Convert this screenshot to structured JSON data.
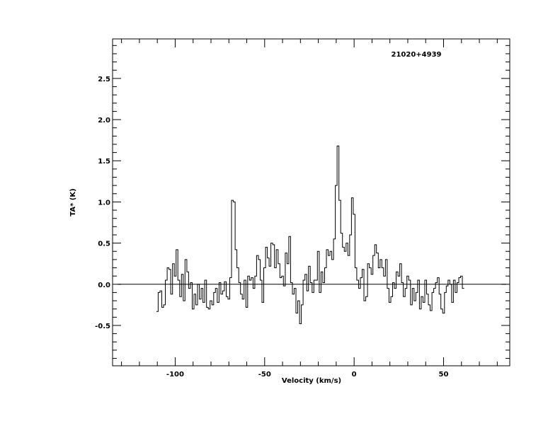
{
  "chart_data": {
    "type": "line",
    "title": "21020+4939",
    "xlabel": "Velocity (km/s)",
    "ylabel": "TA* (K)",
    "xlim": [
      -135,
      87
    ],
    "ylim": [
      -0.99,
      2.98
    ],
    "x_ticks": [
      -100,
      -50,
      0,
      50
    ],
    "x_tick_labels": [
      "-100",
      "-50",
      "0",
      "50"
    ],
    "y_ticks": [
      -0.5,
      0.0,
      0.5,
      1.0,
      1.5,
      2.0,
      2.5
    ],
    "y_tick_labels": [
      "-0.5",
      "0.0",
      "0.5",
      "1.0",
      "1.5",
      "2.0",
      "2.5"
    ],
    "baseline": {
      "y": 0.0,
      "x_range": [
        -132,
        85
      ]
    },
    "grid": false,
    "legend": "none",
    "colors": {
      "line": "#000000",
      "axis": "#000000",
      "background": "#ffffff"
    },
    "series": [
      {
        "x": [
          -110,
          -109,
          -108,
          -107,
          -106,
          -105,
          -104,
          -103,
          -102,
          -101,
          -100,
          -99,
          -98,
          -97,
          -96,
          -95,
          -94,
          -93,
          -92,
          -91,
          -90,
          -89,
          -88,
          -87,
          -86,
          -85,
          -84,
          -83,
          -82,
          -81,
          -80,
          -79,
          -78,
          -77,
          -76,
          -75,
          -74,
          -73,
          -72,
          -71,
          -70,
          -69,
          -68,
          -67,
          -66,
          -65,
          -64,
          -63,
          -62,
          -61,
          -60,
          -59,
          -58,
          -57,
          -56,
          -55,
          -54,
          -53,
          -52,
          -51,
          -50,
          -49,
          -48,
          -47,
          -46,
          -45,
          -44,
          -43,
          -42,
          -41,
          -40,
          -39,
          -38,
          -37,
          -36,
          -35,
          -34,
          -33,
          -32,
          -31,
          -30,
          -29,
          -28,
          -27,
          -26,
          -25,
          -24,
          -23,
          -22,
          -21,
          -20,
          -19,
          -18,
          -17,
          -16,
          -15,
          -14,
          -13,
          -12,
          -11,
          -10,
          -9,
          -8,
          -7,
          -6,
          -5,
          -4,
          -3,
          -2,
          -1,
          0,
          1,
          2,
          3,
          4,
          5,
          6,
          7,
          8,
          9,
          10,
          11,
          12,
          13,
          14,
          15,
          16,
          17,
          18,
          19,
          20,
          21,
          22,
          23,
          24,
          25,
          26,
          27,
          28,
          29,
          30,
          31,
          32,
          33,
          34,
          35,
          36,
          37,
          38,
          39,
          40,
          41,
          42,
          43,
          44,
          45,
          46,
          47,
          48,
          49,
          50,
          51,
          52,
          53,
          54,
          55,
          56,
          57,
          58,
          59,
          60,
          61
        ],
        "y": [
          -0.33,
          -0.1,
          -0.08,
          -0.28,
          -0.25,
          0.05,
          0.2,
          0.18,
          -0.12,
          0.25,
          0.1,
          0.42,
          0.05,
          -0.15,
          0.12,
          -0.2,
          0.3,
          0.15,
          -0.05,
          0.02,
          -0.3,
          -0.12,
          -0.25,
          0.0,
          -0.18,
          -0.05,
          -0.22,
          0.05,
          -0.28,
          -0.3,
          -0.2,
          -0.25,
          -0.1,
          -0.05,
          -0.22,
          0.02,
          -0.12,
          -0.08,
          0.03,
          -0.15,
          -0.18,
          0.08,
          1.02,
          1.0,
          0.42,
          0.2,
          0.02,
          -0.12,
          -0.18,
          0.05,
          -0.28,
          0.1,
          0.05,
          0.08,
          -0.05,
          0.1,
          0.35,
          0.3,
          0.05,
          -0.22,
          0.2,
          0.45,
          0.32,
          0.22,
          0.5,
          0.48,
          0.2,
          0.42,
          0.25,
          0.08,
          0.1,
          -0.02,
          0.38,
          0.25,
          0.58,
          0.02,
          -0.12,
          -0.05,
          -0.35,
          -0.2,
          -0.48,
          -0.25,
          0.05,
          0.12,
          -0.08,
          0.22,
          0.02,
          -0.1,
          0.05,
          0.05,
          0.4,
          -0.1,
          0.15,
          0.02,
          0.2,
          0.42,
          0.35,
          0.4,
          0.3,
          0.55,
          1.2,
          1.68,
          1.02,
          0.62,
          0.45,
          0.4,
          0.5,
          0.35,
          0.6,
          1.05,
          0.85,
          0.2,
          0.05,
          -0.05,
          0.08,
          0.18,
          -0.2,
          -0.15,
          0.25,
          0.2,
          0.12,
          0.35,
          0.48,
          0.38,
          0.2,
          0.3,
          0.2,
          0.1,
          0.3,
          -0.05,
          -0.22,
          -0.15,
          0.02,
          -0.05,
          0.15,
          0.1,
          0.25,
          0.02,
          -0.15,
          -0.05,
          0.1,
          0.05,
          -0.25,
          -0.05,
          -0.2,
          -0.1,
          0.05,
          -0.3,
          -0.15,
          -0.22,
          0.05,
          -0.12,
          -0.25,
          -0.32,
          -0.1,
          -0.05,
          0.02,
          0.08,
          -0.12,
          -0.3,
          -0.35,
          -0.1,
          -0.02,
          0.05,
          0.0,
          -0.22,
          0.05,
          -0.1,
          0.02,
          0.08,
          0.1,
          -0.05
        ]
      }
    ]
  }
}
